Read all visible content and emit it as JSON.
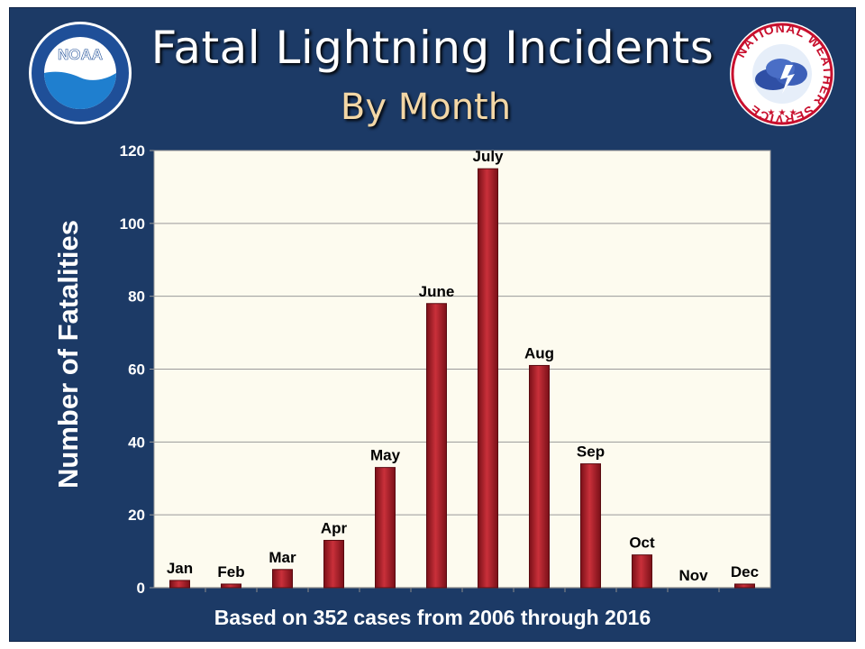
{
  "header": {
    "title": "Fatal Lightning Incidents",
    "subtitle": "By Month"
  },
  "footer": {
    "note": "Based on 352 cases from 2006 through 2016"
  },
  "logos": {
    "left": {
      "icon": "noaa-logo",
      "text": "NOAA"
    },
    "right": {
      "icon": "nws-logo",
      "text": "NATIONAL WEATHER SERVICE"
    }
  },
  "colors": {
    "background": "#1c3a66",
    "plot_area": "#fdfbef",
    "bar": "#9b1a22",
    "bar_light": "#cf3f48",
    "title": "#ffffff",
    "subtitle": "#f3d7a6"
  },
  "chart_data": {
    "type": "bar",
    "categories": [
      "Jan",
      "Feb",
      "Mar",
      "Apr",
      "May",
      "June",
      "July",
      "Aug",
      "Sep",
      "Oct",
      "Nov",
      "Dec"
    ],
    "values": [
      2,
      1,
      5,
      13,
      33,
      78,
      115,
      61,
      34,
      9,
      0,
      1
    ],
    "ylabel": "Number of Fatalities",
    "xlabel": "",
    "ylim": [
      0,
      120
    ],
    "yticks": [
      0,
      20,
      40,
      60,
      80,
      100,
      120
    ],
    "grid": true,
    "legend": "none",
    "data_labels": "category names above bars"
  }
}
